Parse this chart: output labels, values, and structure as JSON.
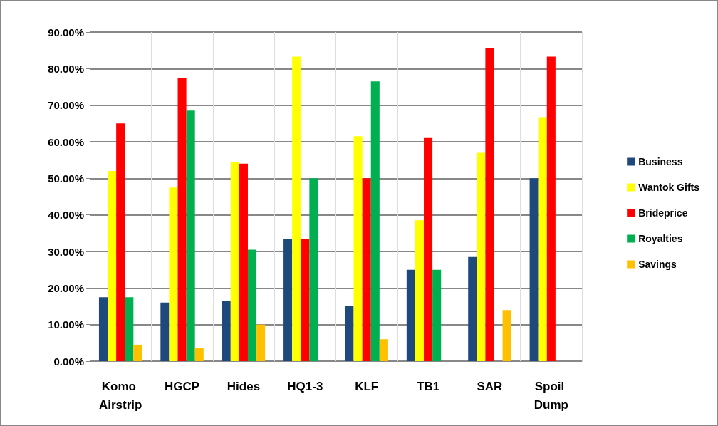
{
  "chart_data": {
    "type": "bar",
    "categories": [
      "Komo Airstrip",
      "HGCP",
      "Hides",
      "HQ1-3",
      "KLF",
      "TB1",
      "SAR",
      "Spoil Dump"
    ],
    "series": [
      {
        "name": "Business",
        "color": "#1f497d",
        "values": [
          17.5,
          16,
          16.5,
          33.3,
          15,
          25,
          28.5,
          50
        ]
      },
      {
        "name": "Wantok Gifts",
        "color": "#ffff00",
        "values": [
          52,
          47.5,
          54.5,
          83.3,
          61.5,
          38.5,
          57,
          66.7
        ]
      },
      {
        "name": "Brideprice",
        "color": "#ff0000",
        "values": [
          65,
          77.5,
          54,
          33.3,
          50,
          61,
          85.5,
          83.3
        ]
      },
      {
        "name": "Royalties",
        "color": "#00b050",
        "values": [
          17.5,
          68.5,
          30.5,
          50,
          76.5,
          25,
          0,
          0
        ]
      },
      {
        "name": "Savings",
        "color": "#ffc000",
        "values": [
          4.5,
          3.5,
          10,
          0,
          6,
          0,
          14,
          0
        ]
      }
    ],
    "ylim": [
      0,
      90
    ],
    "yticks": [
      {
        "value": 0,
        "label": "0.00%"
      },
      {
        "value": 10,
        "label": "10.00%"
      },
      {
        "value": 20,
        "label": "20.00%"
      },
      {
        "value": 30,
        "label": "30.00%"
      },
      {
        "value": 40,
        "label": "40.00%"
      },
      {
        "value": 50,
        "label": "50.00%"
      },
      {
        "value": 60,
        "label": "60.00%"
      },
      {
        "value": 70,
        "label": "70.00%"
      },
      {
        "value": 80,
        "label": "80.00%"
      },
      {
        "value": 90,
        "label": "90.00%"
      }
    ],
    "grid": true,
    "legend": "right"
  }
}
